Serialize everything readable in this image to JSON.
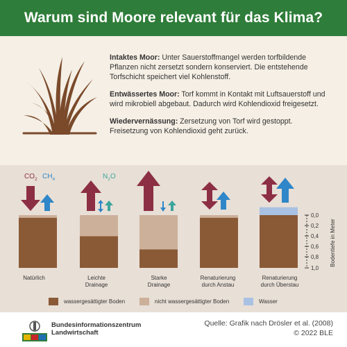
{
  "title": "Warum sind Moore relevant für das Klima?",
  "paragraphs": [
    {
      "heading": "Intaktes Moor:",
      "text": " Unter Sauerstoffmangel werden torfbildende Pflanzen nicht zersetzt sondern konserviert. Die entstehende Torfschicht speichert viel Kohlenstoff."
    },
    {
      "heading": "Entwässertes Moor:",
      "text": " Torf kommt in Kontakt mit Luftsauerstoff und wird mikrobiell abgebaut. Dadurch wird Kohlendioxid freigesetzt."
    },
    {
      "heading": "Wiedervernässung:",
      "text": " Zersetzung von Torf wird gestoppt. Freisetzung von Kohlendioxid geht zurück."
    }
  ],
  "gases": {
    "co2": "CO",
    "co2_sub": "2",
    "ch4": "CH",
    "ch4_sub": "4",
    "n2o": "N",
    "n2o_sub": "2",
    "n2o_suffix": "O"
  },
  "scenarios": [
    {
      "label1": "Natürlich",
      "label2": "",
      "saturated_fraction": 0.95,
      "unsaturated_fraction": 0.05,
      "water_fraction": 0
    },
    {
      "label1": "Leichte",
      "label2": "Drainage",
      "saturated_fraction": 0.6,
      "unsaturated_fraction": 0.4,
      "water_fraction": 0
    },
    {
      "label1": "Starke",
      "label2": "Drainage",
      "saturated_fraction": 0.35,
      "unsaturated_fraction": 0.65,
      "water_fraction": 0
    },
    {
      "label1": "Renaturierung",
      "label2": "durch Anstau",
      "saturated_fraction": 0.95,
      "unsaturated_fraction": 0.05,
      "water_fraction": 0
    },
    {
      "label1": "Renaturierung",
      "label2": "durch Überstau",
      "saturated_fraction": 1.0,
      "unsaturated_fraction": 0,
      "water_fraction": 0.15
    }
  ],
  "axis": {
    "label": "Bodentiefe in Meter",
    "ticks": [
      "0,0",
      "0,2",
      "0,4",
      "0,6",
      "0,8",
      "1,0"
    ]
  },
  "legend": [
    {
      "label": "wassergesättigter Boden",
      "color": "#8a5a37"
    },
    {
      "label": "nicht wassergesättigter Boden",
      "color": "#cdb09a"
    },
    {
      "label": "Wasser",
      "color": "#a9c1e2"
    }
  ],
  "colors": {
    "co2_arrow": "#8c2f45",
    "ch4_arrow": "#2f86c8",
    "n2o_arrow": "#3ca59d",
    "green": "#2f7d3a",
    "band": "#e8dfd6"
  },
  "footer": {
    "org_line1": "Bundesinformationszentrum",
    "org_line2": "Landwirtschaft",
    "source_line1": "Quelle: Grafik nach Drösler et al. (2008)",
    "source_line2": "© 2022 BLE"
  }
}
